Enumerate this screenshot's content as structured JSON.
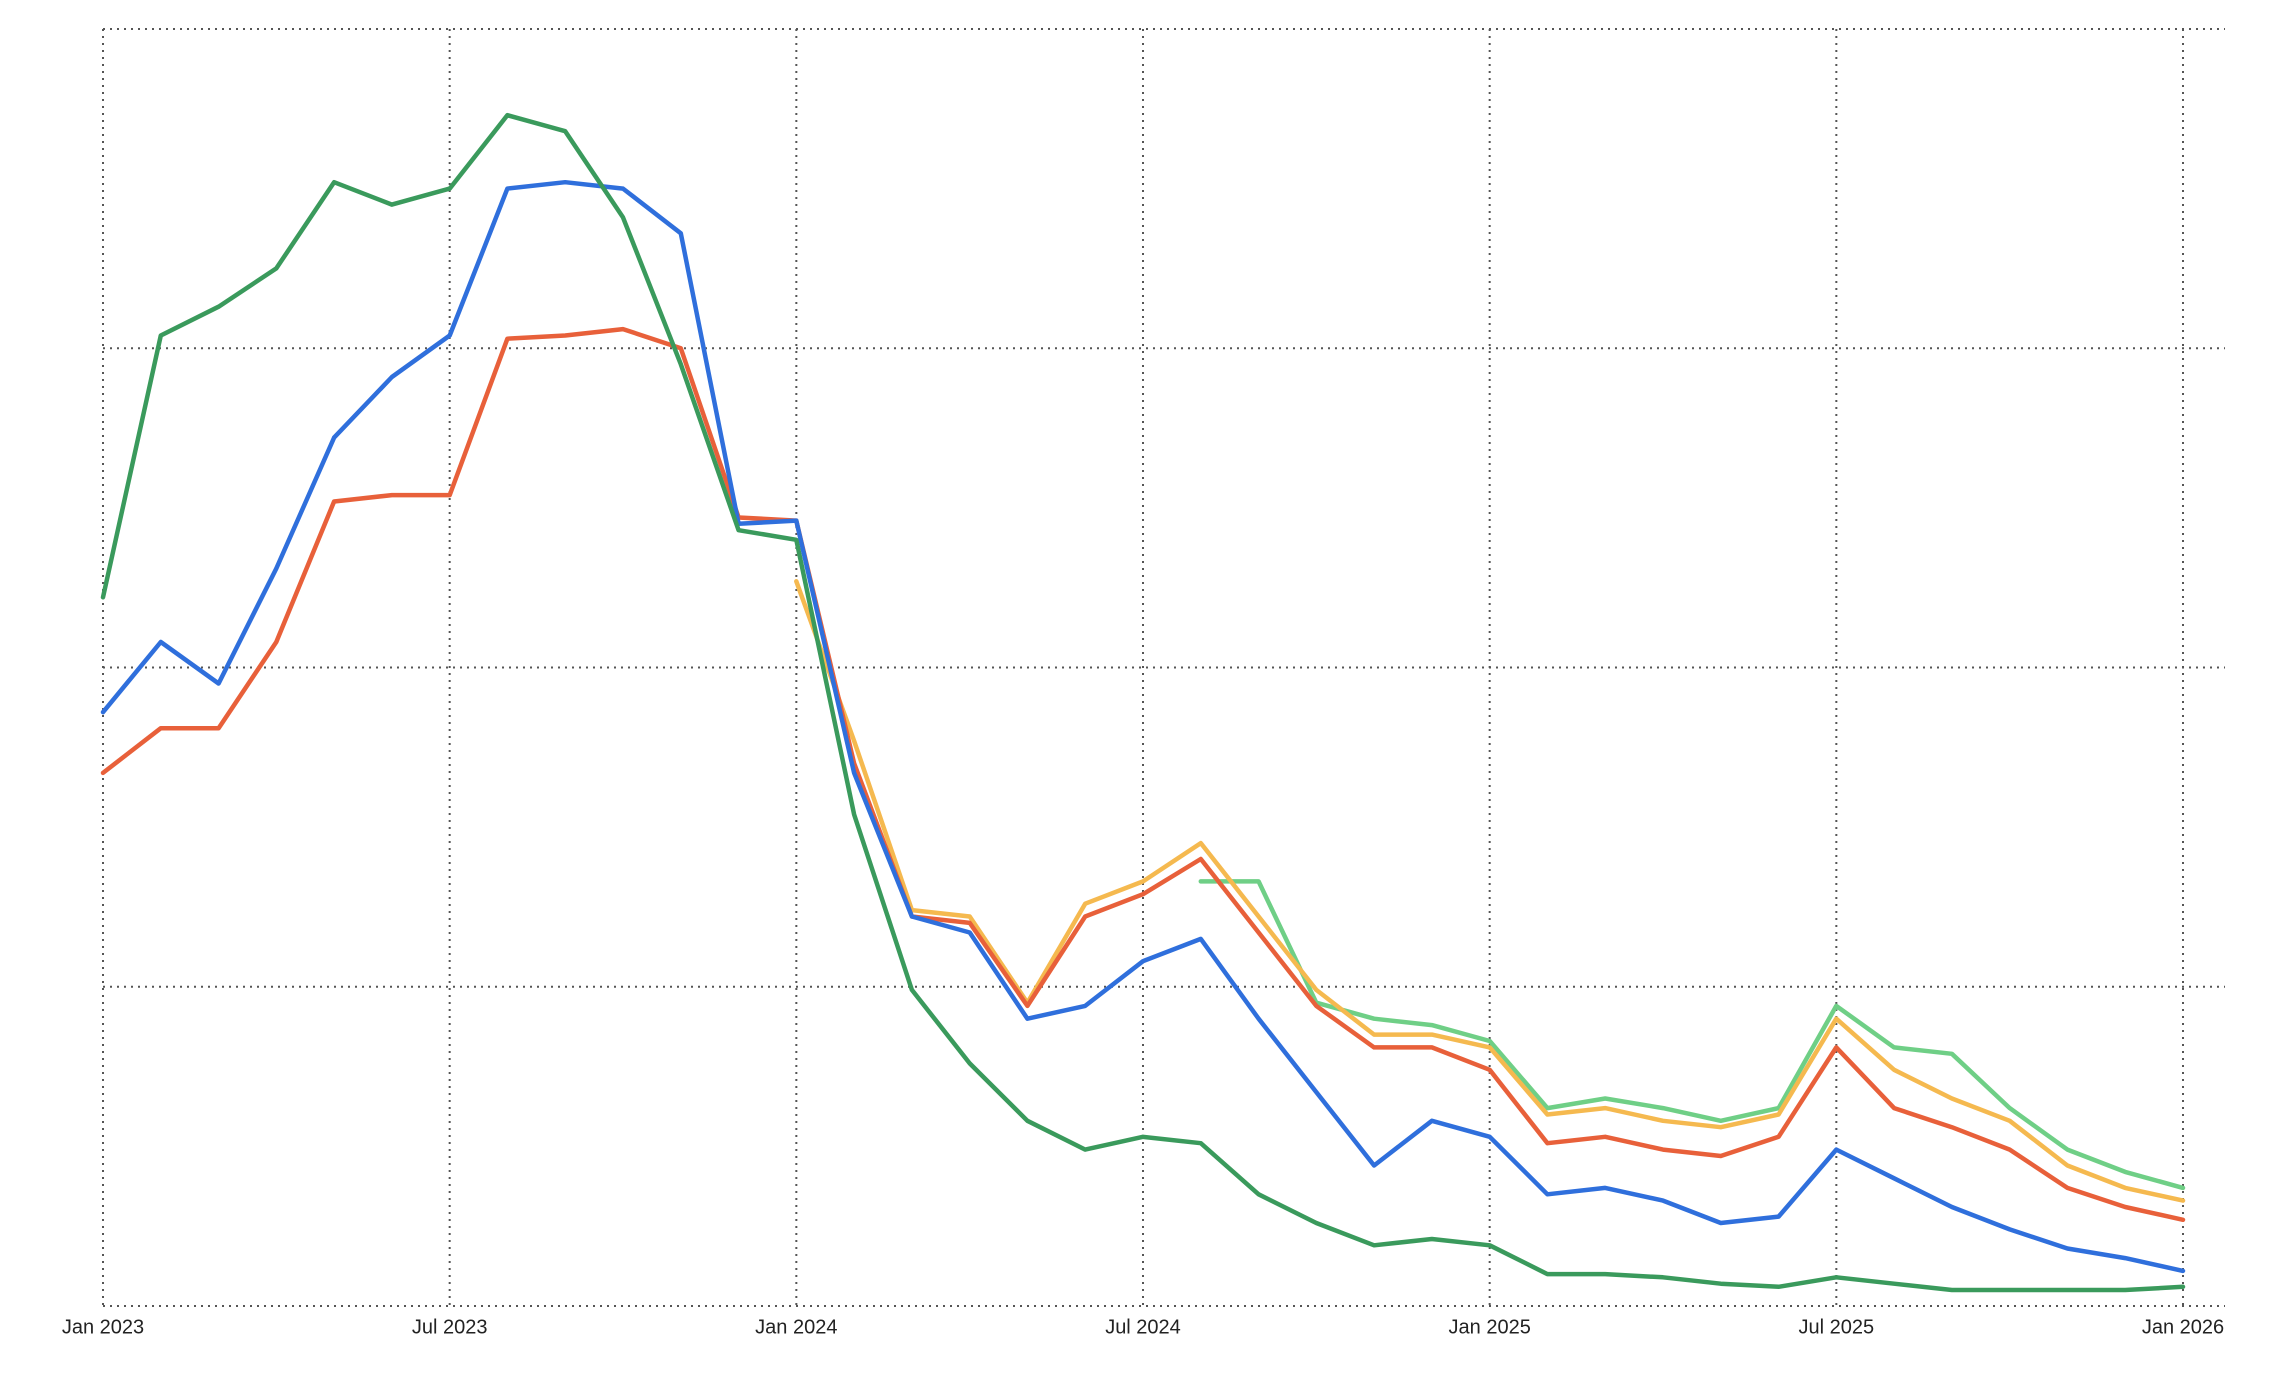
{
  "chart_data": {
    "type": "line",
    "x": [
      "2023-01",
      "2023-02",
      "2023-03",
      "2023-04",
      "2023-05",
      "2023-06",
      "2023-07",
      "2023-08",
      "2023-09",
      "2023-10",
      "2023-11",
      "2023-12",
      "2024-01",
      "2024-02",
      "2024-03",
      "2024-04",
      "2024-05",
      "2024-06",
      "2024-07",
      "2024-08",
      "2024-09",
      "2024-10",
      "2024-11",
      "2024-12",
      "2025-01",
      "2025-02",
      "2025-03",
      "2025-04",
      "2025-05",
      "2025-06",
      "2025-07",
      "2025-08",
      "2025-09",
      "2025-10",
      "2025-11",
      "2025-12",
      "2026-01"
    ],
    "xticks": [
      {
        "value": "2023-01",
        "label": "Jan 2023"
      },
      {
        "value": "2023-07",
        "label": "Jul 2023"
      },
      {
        "value": "2024-01",
        "label": "Jan 2024"
      },
      {
        "value": "2024-07",
        "label": "Jul 2024"
      },
      {
        "value": "2025-01",
        "label": "Jan 2025"
      },
      {
        "value": "2025-07",
        "label": "Jul 2025"
      },
      {
        "value": "2026-01",
        "label": "Jan 2026"
      }
    ],
    "ylim": [
      0,
      4
    ],
    "yticks": [
      0,
      1,
      2,
      3,
      4
    ],
    "ytick_labels": false,
    "grid": true,
    "series": [
      {
        "color": "#6fcf86",
        "values": [
          null,
          null,
          null,
          null,
          null,
          null,
          null,
          null,
          null,
          null,
          null,
          null,
          null,
          null,
          null,
          null,
          null,
          null,
          null,
          1.33,
          1.33,
          0.95,
          0.9,
          0.88,
          0.83,
          0.62,
          0.65,
          0.62,
          0.58,
          0.62,
          0.94,
          0.81,
          0.79,
          0.62,
          0.49,
          0.42,
          0.37
        ]
      },
      {
        "color": "#f5b94f",
        "values": [
          null,
          null,
          null,
          null,
          null,
          null,
          null,
          null,
          null,
          null,
          null,
          null,
          2.27,
          1.77,
          1.24,
          1.22,
          0.95,
          1.26,
          1.33,
          1.45,
          1.22,
          0.99,
          0.85,
          0.85,
          0.81,
          0.6,
          0.62,
          0.58,
          0.56,
          0.6,
          0.9,
          0.74,
          0.65,
          0.58,
          0.44,
          0.37,
          0.33
        ]
      },
      {
        "color": "#e8603a",
        "values": [
          1.67,
          1.81,
          1.81,
          2.08,
          2.52,
          2.54,
          2.54,
          3.03,
          3.04,
          3.06,
          3.0,
          2.47,
          2.46,
          1.7,
          1.22,
          1.2,
          0.94,
          1.22,
          1.29,
          1.4,
          1.17,
          0.94,
          0.81,
          0.81,
          0.74,
          0.51,
          0.53,
          0.49,
          0.47,
          0.53,
          0.81,
          0.62,
          0.56,
          0.49,
          0.37,
          0.31,
          0.27
        ]
      },
      {
        "color": "#2f6fdc",
        "values": [
          1.86,
          2.08,
          1.95,
          2.31,
          2.72,
          2.91,
          3.04,
          3.5,
          3.52,
          3.5,
          3.36,
          2.45,
          2.46,
          1.67,
          1.22,
          1.17,
          0.9,
          0.94,
          1.08,
          1.15,
          0.9,
          0.67,
          0.44,
          0.58,
          0.53,
          0.35,
          0.37,
          0.33,
          0.26,
          0.28,
          0.49,
          0.4,
          0.31,
          0.24,
          0.18,
          0.15,
          0.11
        ]
      },
      {
        "color": "#3a9a5c",
        "values": [
          2.22,
          3.04,
          3.13,
          3.25,
          3.52,
          3.45,
          3.5,
          3.73,
          3.68,
          3.41,
          2.95,
          2.43,
          2.4,
          1.54,
          0.99,
          0.76,
          0.58,
          0.49,
          0.53,
          0.51,
          0.35,
          0.26,
          0.19,
          0.21,
          0.19,
          0.1,
          0.1,
          0.09,
          0.07,
          0.06,
          0.09,
          0.07,
          0.05,
          0.05,
          0.05,
          0.05,
          0.06
        ]
      }
    ]
  }
}
